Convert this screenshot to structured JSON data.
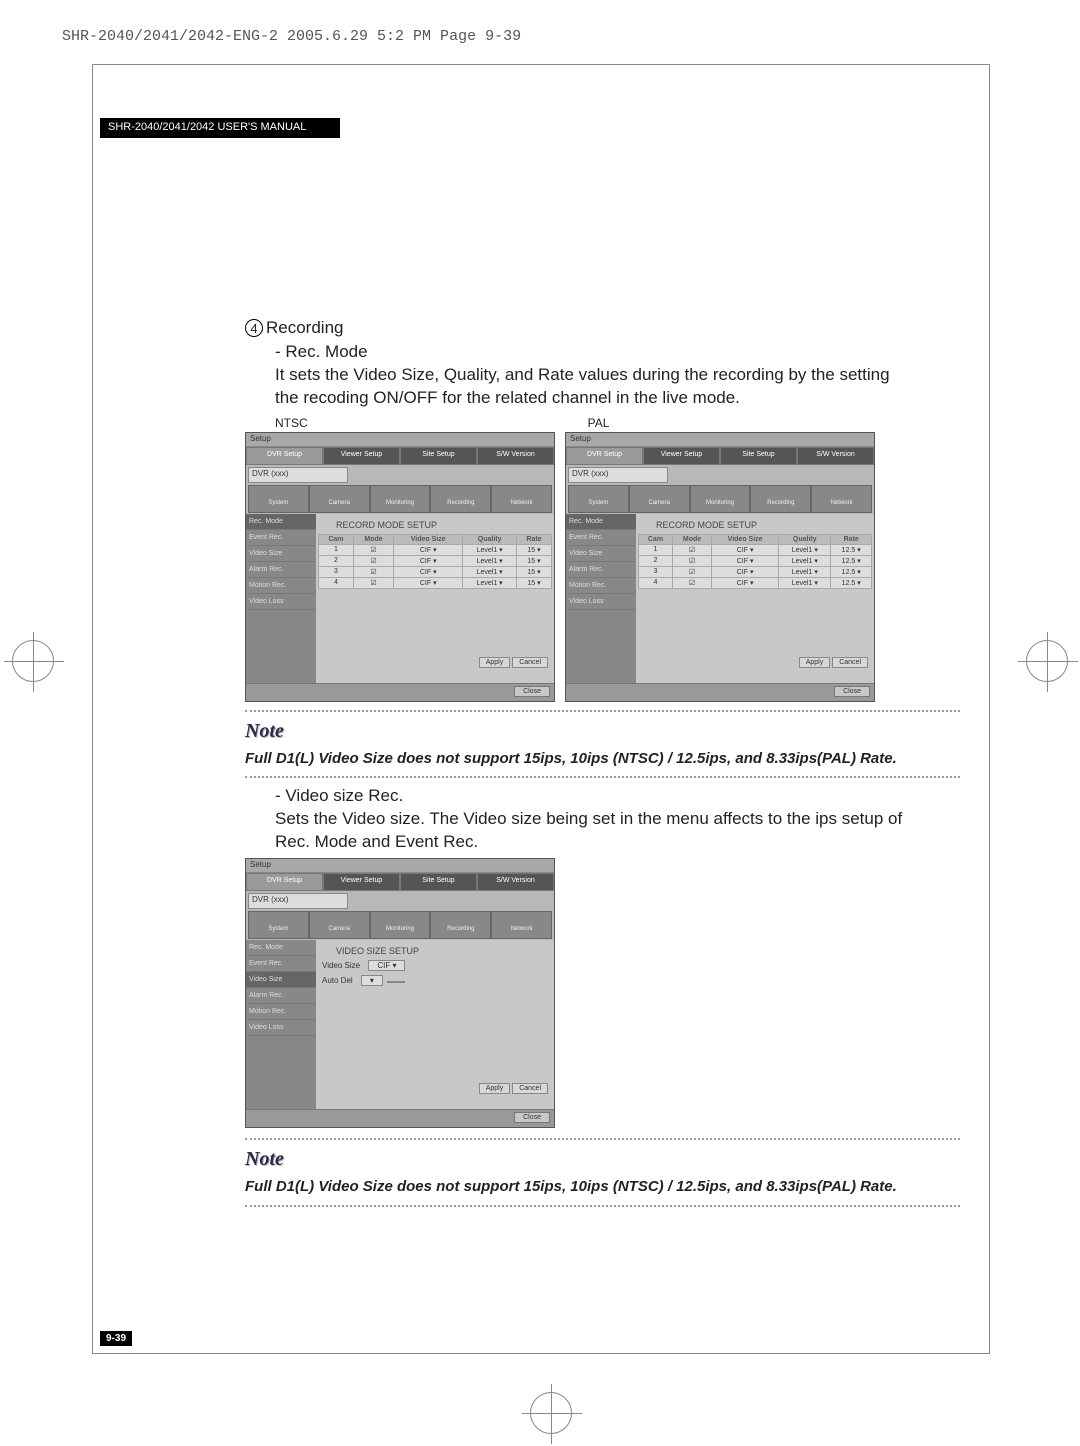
{
  "print_header": "SHR-2040/2041/2042-ENG-2  2005.6.29  5:2 PM  Page 9-39",
  "manual_bar": "SHR-2040/2041/2042 USER'S MANUAL",
  "page_number": "9-39",
  "section": {
    "number": "4",
    "title": "Recording",
    "sub1_title": "- Rec. Mode",
    "sub1_desc": "It sets the Video Size, Quality, and Rate values during the recording by the setting the recoding ON/OFF for the related channel in the live mode.",
    "ntsc_label": "NTSC",
    "pal_label": "PAL",
    "sub2_title": "- Video size Rec.",
    "sub2_desc": "Sets the Video size. The Video size being set in the menu affects to the ips setup of Rec. Mode and Event Rec."
  },
  "note1": {
    "title": "Note",
    "body": "Full D1(L) Video Size does not support 15ips, 10ips (NTSC) / 12.5ips, and 8.33ips(PAL) Rate."
  },
  "note2": {
    "title": "Note",
    "body": "Full D1(L) Video Size does not support 15ips, 10ips (NTSC) / 12.5ips, and 8.33ips(PAL) Rate."
  },
  "panel": {
    "titlebar": "Setup",
    "tabs": [
      "DVR Setup",
      "Viewer Setup",
      "Site Setup",
      "S/W Version"
    ],
    "dropdown": "DVR (xxx)",
    "icon_labels": [
      "System",
      "Camera",
      "Monitoring",
      "Recording",
      "Network"
    ],
    "side_items": [
      "Rec. Mode",
      "Event Rec.",
      "Video Size",
      "Alarm Rec.",
      "Motion Rec.",
      "Video Loss"
    ],
    "rec_mode_title": "RECORD MODE SETUP",
    "video_size_title": "VIDEO SIZE SETUP",
    "table_headers": [
      "Cam",
      "Mode",
      "Video Size",
      "Quality",
      "Rate"
    ],
    "ntsc_rows": [
      [
        "1",
        "☑",
        "CIF ▾",
        "Level1 ▾",
        "15 ▾"
      ],
      [
        "2",
        "☑",
        "CIF ▾",
        "Level1 ▾",
        "15 ▾"
      ],
      [
        "3",
        "☑",
        "CIF ▾",
        "Level1 ▾",
        "15 ▾"
      ],
      [
        "4",
        "☑",
        "CIF ▾",
        "Level1 ▾",
        "15 ▾"
      ]
    ],
    "pal_rows": [
      [
        "1",
        "☑",
        "CIF ▾",
        "Level1 ▾",
        "12.5 ▾"
      ],
      [
        "2",
        "☑",
        "CIF ▾",
        "Level1 ▾",
        "12.5 ▾"
      ],
      [
        "3",
        "☑",
        "CIF ▾",
        "Level1 ▾",
        "12.5 ▾"
      ],
      [
        "4",
        "☑",
        "CIF ▾",
        "Level1 ▾",
        "12.5 ▾"
      ]
    ],
    "video_size_fields": {
      "label1": "Video Size",
      "value1": "CIF ▾",
      "label2": "Auto Del",
      "value2a": "▾",
      "value2b": ""
    },
    "footer_btns": [
      "Apply",
      "Cancel"
    ],
    "status_btn": "Close"
  }
}
